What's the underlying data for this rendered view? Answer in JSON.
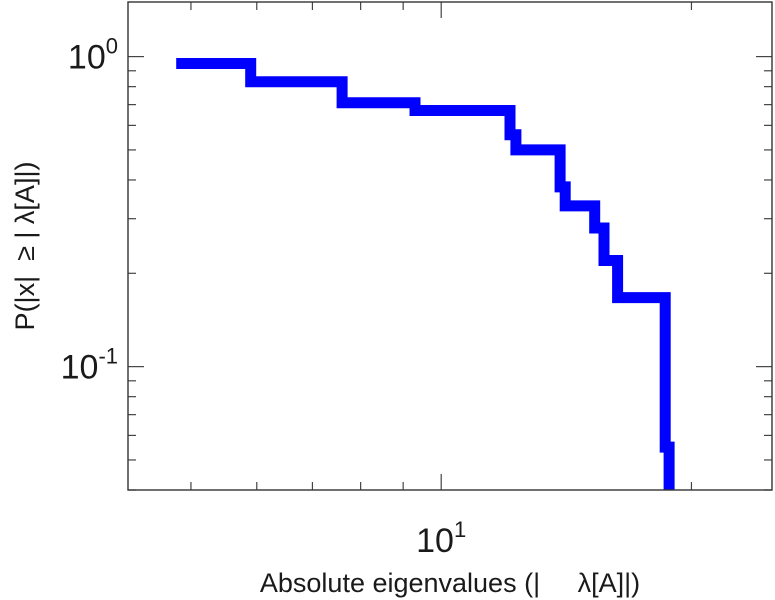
{
  "chart_data": {
    "type": "line",
    "line_style": "step",
    "xlabel": "Absolute eigenvalues (|     λ[A]|)",
    "ylabel": "P(|x|  ≥ | λ[A]|)",
    "x_scale": "log",
    "y_scale": "log",
    "xlim": [
      4.2,
      25
    ],
    "ylim": [
      0.04,
      1.5
    ],
    "x_ticks": [
      {
        "base": "10",
        "exp": "1",
        "value": 10
      }
    ],
    "y_ticks": [
      {
        "base": "10",
        "exp": "0",
        "value": 1
      },
      {
        "base": "10",
        "exp": "-1",
        "value": 0.1
      }
    ],
    "grid": false,
    "series": [
      {
        "color": "#0000ff",
        "x": [
          4.8,
          5.9,
          5.9,
          7.6,
          7.6,
          9.3,
          9.3,
          12.1,
          12.1,
          12.3,
          12.3,
          13.9,
          13.9,
          14.1,
          14.1,
          15.3,
          15.3,
          15.7,
          15.7,
          16.3,
          16.3,
          18.6,
          18.6,
          18.8,
          18.8
        ],
        "y": [
          0.95,
          0.95,
          0.83,
          0.83,
          0.71,
          0.71,
          0.67,
          0.67,
          0.56,
          0.56,
          0.5,
          0.5,
          0.38,
          0.38,
          0.33,
          0.33,
          0.28,
          0.28,
          0.22,
          0.22,
          0.167,
          0.167,
          0.055,
          0.055,
          0.04
        ]
      }
    ]
  }
}
